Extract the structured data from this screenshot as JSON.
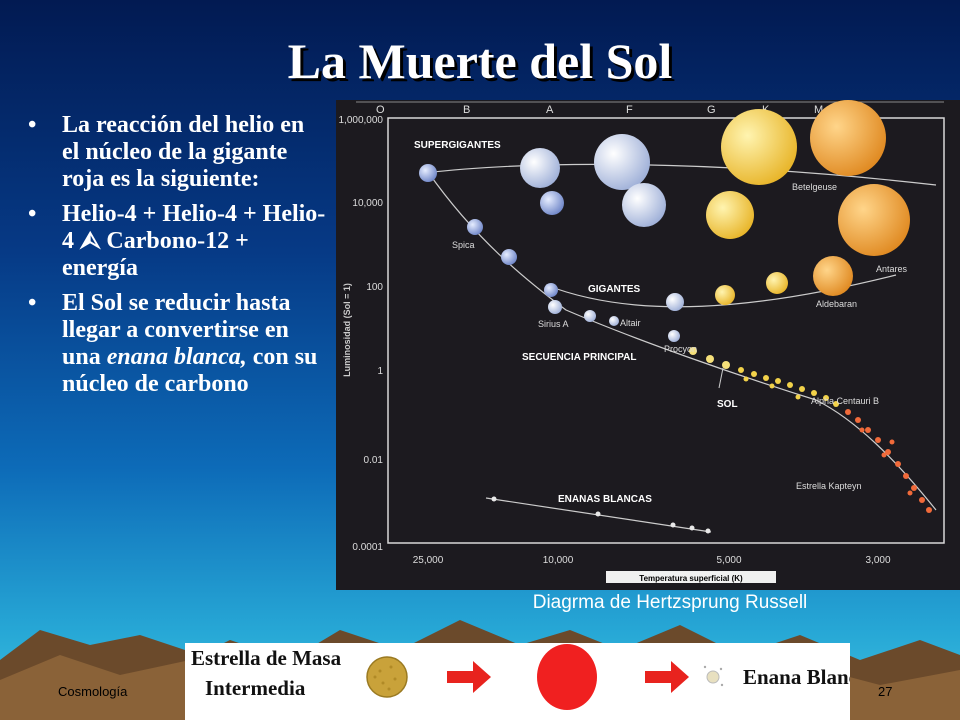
{
  "slide": {
    "title": "La Muerte del Sol",
    "bullets": [
      {
        "text": "La reacción del helio en el núcleo de la gigante roja es la siguiente:"
      },
      {
        "before": "Helio-4 + Helio-4 + Helio-4 ",
        "arrow": "⮙",
        "after": " Carbono-12 + energía"
      },
      {
        "before": "El Sol se reducir hasta llegar a convertirse en una ",
        "italic": "enana blanca,",
        "after": " con su núcleo de carbono"
      }
    ],
    "bullet_symbol": "•",
    "footer_left": "Cosmología",
    "page_number": "27"
  },
  "hr_diagram": {
    "caption": "Diagrma de Hertzsprung Russell",
    "spectral_classes": [
      "O",
      "B",
      "A",
      "F",
      "G",
      "K",
      "M"
    ],
    "luminosity_ticks": [
      "1,000,000",
      "10,000",
      "100",
      "1",
      "0.01",
      "0.0001"
    ],
    "temperature_ticks": [
      "25,000",
      "10,000",
      "5,000",
      "3,000"
    ],
    "ylabel": "Luminosidad (Sol = 1)",
    "xlabel": "Temperatura superficial (K)",
    "region_labels": {
      "supergiants": "SUPERGIGANTES",
      "giants": "GIGANTES",
      "main_sequence": "SECUENCIA PRINCIPAL",
      "white_dwarfs": "ENANAS BLANCAS",
      "sun": "SOL"
    },
    "star_labels": {
      "betelgeuse": "Betelgeuse",
      "antares": "Antares",
      "spica": "Spica",
      "aldebaran": "Aldebaran",
      "sirius": "Sirius A",
      "altair": "Altair",
      "procyon": "Procyon",
      "alpha_cen": "Alpha Centauri B",
      "kapteyn": "Estrella Kapteyn"
    }
  },
  "evolution_strip": {
    "label_line1": "Estrella de Masa",
    "label_line2": "Intermedia",
    "end_label": "Enana Blanca"
  },
  "colors": {
    "supergiant_white": "#dfe6f2",
    "supergiant_yellow": "#f7d04a",
    "supergiant_orange": "#f2a83a",
    "red_giant": "#f03030",
    "arrow_red": "#e8231e"
  }
}
